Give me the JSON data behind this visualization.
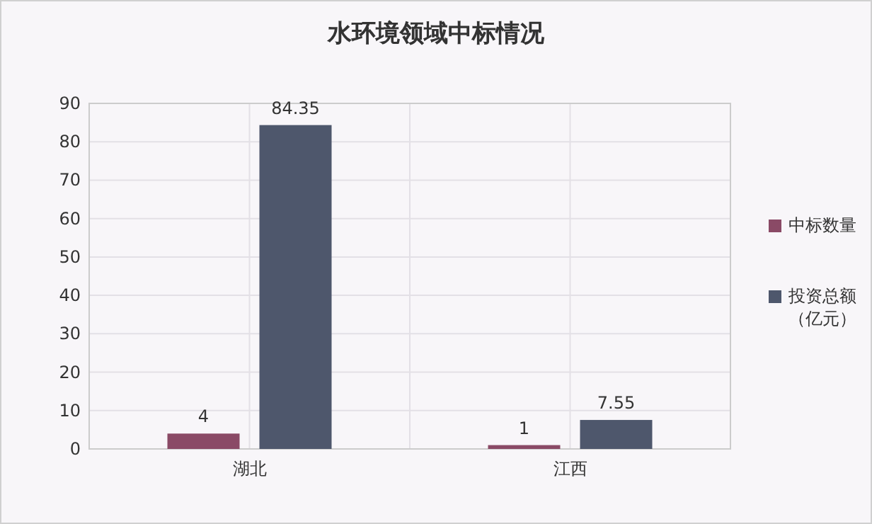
{
  "chart_data": {
    "type": "bar",
    "title": "水环境领域中标情况",
    "categories": [
      "湖北",
      "江西"
    ],
    "series": [
      {
        "name": "中标数量",
        "color": "#8a4a66",
        "values": [
          4,
          1
        ]
      },
      {
        "name": "投资总额（亿元）",
        "color": "#4e576c",
        "values": [
          84.35,
          7.55
        ]
      }
    ],
    "ylim": [
      0,
      90
    ],
    "yticks": [
      0,
      10,
      20,
      30,
      40,
      50,
      60,
      70,
      80,
      90
    ],
    "grid": true,
    "legend": "right",
    "data_labels": true
  }
}
